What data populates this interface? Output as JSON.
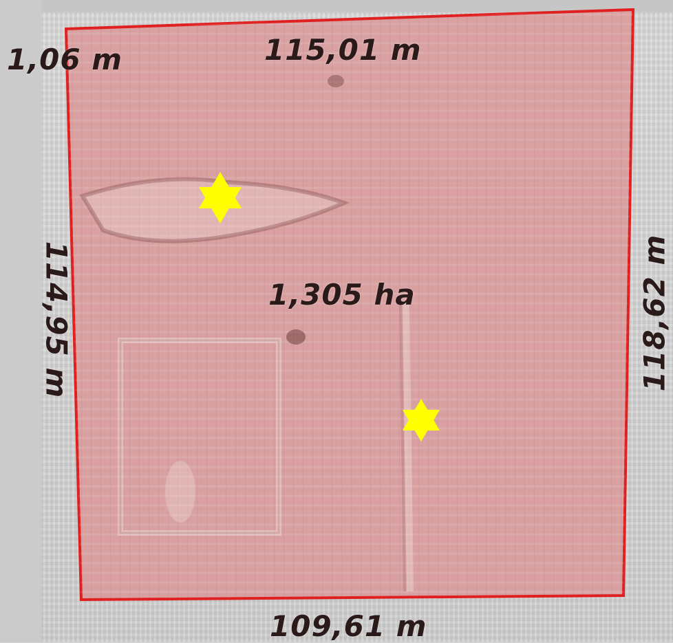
{
  "map": {
    "parcel": {
      "fill_color": "#d99a9a",
      "border_color": "#e02020",
      "area_label": "1,305 ha"
    },
    "measurements": {
      "corner": "1,06 m",
      "top": "115,01 m",
      "left": "114,95 m",
      "right": "118,62 m",
      "bottom": "109,61 m"
    },
    "markers": {
      "icon": "star-of-david-icon",
      "color": "#ffff00",
      "count": 2
    }
  }
}
